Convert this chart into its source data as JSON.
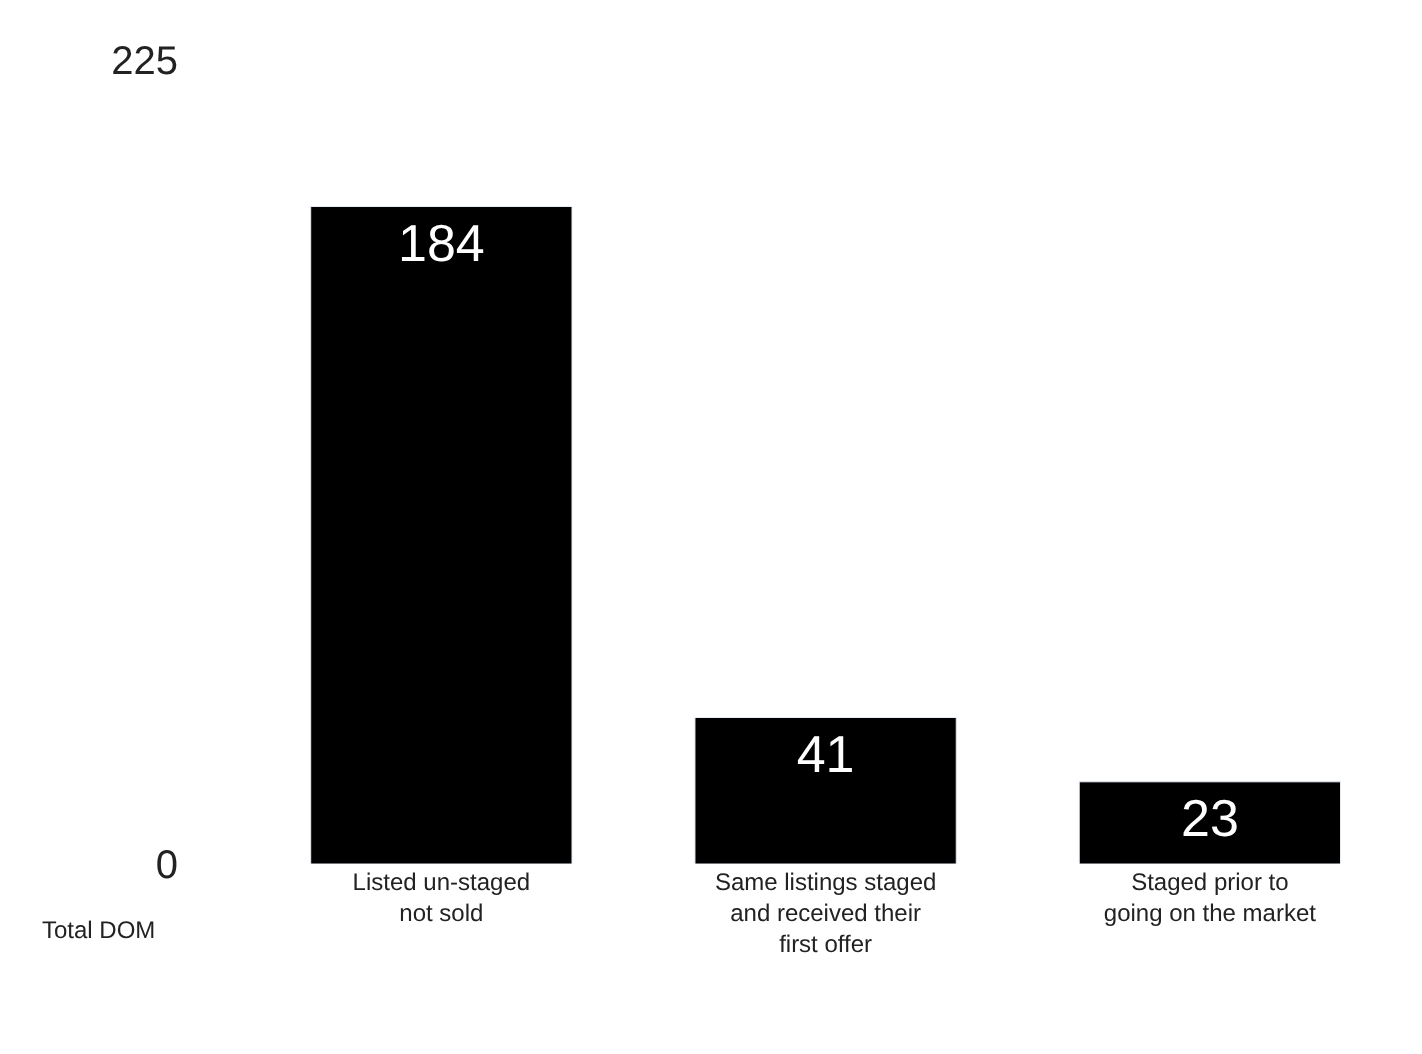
{
  "chart_data": {
    "type": "bar",
    "ylabel": "Total DOM",
    "categories": [
      "Listed un-staged\nnot sold",
      "Same listings staged\nand received their\nfirst offer",
      "Staged prior to\ngoing on the market"
    ],
    "values": [
      184,
      41,
      23
    ],
    "color": "#000000",
    "data_labels": true,
    "ylim": [
      0,
      225
    ],
    "yticks": [
      0,
      225
    ],
    "legend": false
  }
}
